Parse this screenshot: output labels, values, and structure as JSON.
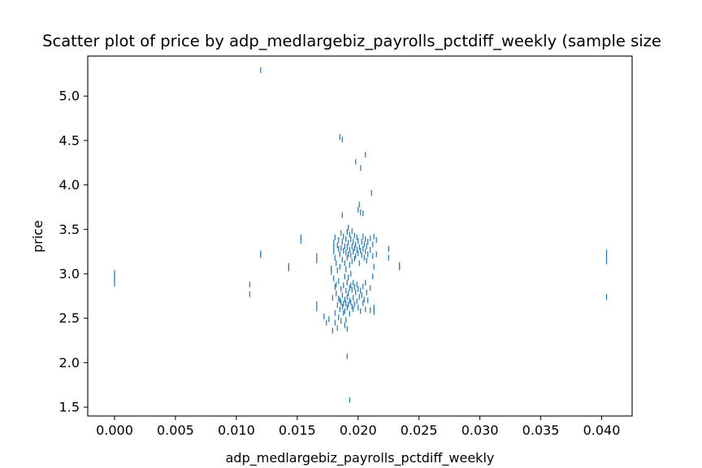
{
  "chart_data": {
    "type": "scatter",
    "title": "Scatter plot of price by adp_medlargebiz_payrolls_pctdiff_weekly (sample size",
    "xlabel": "adp_medlargebiz_payrolls_pctdiff_weekly",
    "ylabel": "price",
    "xlim": [
      -0.0022,
      0.0425
    ],
    "ylim": [
      1.4,
      5.45
    ],
    "xticks": [
      0.0,
      0.005,
      0.01,
      0.015,
      0.02,
      0.025,
      0.03,
      0.035,
      0.04
    ],
    "xtick_labels": [
      "0.000",
      "0.005",
      "0.010",
      "0.015",
      "0.020",
      "0.025",
      "0.030",
      "0.035",
      "0.040"
    ],
    "yticks": [
      1.5,
      2.0,
      2.5,
      3.0,
      3.5,
      4.0,
      4.5,
      5.0
    ],
    "ytick_labels": [
      "1.5",
      "2.0",
      "2.5",
      "3.0",
      "3.5",
      "4.0",
      "4.5",
      "5.0"
    ],
    "marker": "|",
    "color": "#1f77b4",
    "grid": false,
    "points": [
      [
        0.0,
        3.01
      ],
      [
        0.0,
        2.98
      ],
      [
        0.0,
        2.93
      ],
      [
        0.0,
        2.89
      ],
      [
        0.0111,
        2.88
      ],
      [
        0.0111,
        2.77
      ],
      [
        0.012,
        5.29
      ],
      [
        0.012,
        3.23
      ],
      [
        0.012,
        3.21
      ],
      [
        0.0143,
        3.09
      ],
      [
        0.0143,
        3.06
      ],
      [
        0.0153,
        3.41
      ],
      [
        0.0153,
        3.37
      ],
      [
        0.0166,
        3.2
      ],
      [
        0.0166,
        3.15
      ],
      [
        0.0166,
        2.66
      ],
      [
        0.0166,
        2.61
      ],
      [
        0.0172,
        2.52
      ],
      [
        0.0174,
        2.45
      ],
      [
        0.0176,
        2.49
      ],
      [
        0.0178,
        3.06
      ],
      [
        0.0178,
        3.02
      ],
      [
        0.0179,
        2.36
      ],
      [
        0.0179,
        2.73
      ],
      [
        0.018,
        3.3
      ],
      [
        0.018,
        3.35
      ],
      [
        0.018,
        3.25
      ],
      [
        0.018,
        2.95
      ],
      [
        0.0181,
        3.41
      ],
      [
        0.0181,
        3.18
      ],
      [
        0.0181,
        2.85
      ],
      [
        0.0181,
        2.56
      ],
      [
        0.0181,
        2.45
      ],
      [
        0.0182,
        3.12
      ],
      [
        0.0182,
        2.88
      ],
      [
        0.0182,
        2.78
      ],
      [
        0.0183,
        3.32
      ],
      [
        0.0183,
        3.04
      ],
      [
        0.0183,
        2.65
      ],
      [
        0.0183,
        2.39
      ],
      [
        0.0184,
        3.38
      ],
      [
        0.0184,
        3.28
      ],
      [
        0.0184,
        2.92
      ],
      [
        0.0184,
        2.72
      ],
      [
        0.0184,
        2.51
      ],
      [
        0.0185,
        4.54
      ],
      [
        0.0185,
        3.22
      ],
      [
        0.0185,
        3.08
      ],
      [
        0.0185,
        2.7
      ],
      [
        0.0185,
        2.6
      ],
      [
        0.0186,
        3.46
      ],
      [
        0.0186,
        3.29
      ],
      [
        0.0186,
        2.83
      ],
      [
        0.0186,
        2.68
      ],
      [
        0.0186,
        2.47
      ],
      [
        0.0187,
        4.51
      ],
      [
        0.0187,
        3.66
      ],
      [
        0.0187,
        3.36
      ],
      [
        0.0187,
        3.16
      ],
      [
        0.0187,
        2.76
      ],
      [
        0.0187,
        2.63
      ],
      [
        0.0188,
        3.42
      ],
      [
        0.0188,
        3.26
      ],
      [
        0.0188,
        2.87
      ],
      [
        0.0188,
        2.66
      ],
      [
        0.0188,
        2.56
      ],
      [
        0.0189,
        3.31
      ],
      [
        0.0189,
        3.12
      ],
      [
        0.0189,
        2.97
      ],
      [
        0.0189,
        2.71
      ],
      [
        0.0189,
        2.58
      ],
      [
        0.0189,
        2.42
      ],
      [
        0.019,
        3.39
      ],
      [
        0.019,
        3.24
      ],
      [
        0.019,
        3.05
      ],
      [
        0.019,
        2.81
      ],
      [
        0.019,
        2.67
      ],
      [
        0.019,
        2.48
      ],
      [
        0.0191,
        3.47
      ],
      [
        0.0191,
        3.3
      ],
      [
        0.0191,
        3.18
      ],
      [
        0.0191,
        2.9
      ],
      [
        0.0191,
        2.74
      ],
      [
        0.0191,
        2.62
      ],
      [
        0.0191,
        2.07
      ],
      [
        0.0191,
        2.38
      ],
      [
        0.0192,
        3.52
      ],
      [
        0.0192,
        3.35
      ],
      [
        0.0192,
        3.22
      ],
      [
        0.0192,
        2.96
      ],
      [
        0.0192,
        2.78
      ],
      [
        0.0192,
        2.65
      ],
      [
        0.0193,
        3.44
      ],
      [
        0.0193,
        3.27
      ],
      [
        0.0193,
        3.1
      ],
      [
        0.0193,
        2.84
      ],
      [
        0.0193,
        2.7
      ],
      [
        0.0193,
        2.55
      ],
      [
        0.0193,
        1.58
      ],
      [
        0.0194,
        3.39
      ],
      [
        0.0194,
        3.21
      ],
      [
        0.0194,
        3.0
      ],
      [
        0.0194,
        2.87
      ],
      [
        0.0194,
        2.68
      ],
      [
        0.0195,
        3.48
      ],
      [
        0.0195,
        3.31
      ],
      [
        0.0195,
        3.14
      ],
      [
        0.0195,
        2.82
      ],
      [
        0.0195,
        2.63
      ],
      [
        0.0196,
        3.36
      ],
      [
        0.0196,
        3.25
      ],
      [
        0.0196,
        2.9
      ],
      [
        0.0196,
        2.73
      ],
      [
        0.0196,
        2.6
      ],
      [
        0.0197,
        3.43
      ],
      [
        0.0197,
        3.29
      ],
      [
        0.0197,
        3.17
      ],
      [
        0.0197,
        2.85
      ],
      [
        0.0197,
        2.66
      ],
      [
        0.0198,
        4.26
      ],
      [
        0.0198,
        3.33
      ],
      [
        0.0198,
        3.2
      ],
      [
        0.0198,
        2.79
      ],
      [
        0.0199,
        3.41
      ],
      [
        0.0199,
        3.27
      ],
      [
        0.0199,
        2.88
      ],
      [
        0.0199,
        2.69
      ],
      [
        0.02,
        3.72
      ],
      [
        0.02,
        3.37
      ],
      [
        0.02,
        3.23
      ],
      [
        0.02,
        2.83
      ],
      [
        0.02,
        2.62
      ],
      [
        0.0201,
        3.78
      ],
      [
        0.0201,
        3.3
      ],
      [
        0.0201,
        3.12
      ],
      [
        0.0201,
        2.74
      ],
      [
        0.0202,
        4.19
      ],
      [
        0.0202,
        3.69
      ],
      [
        0.0202,
        3.26
      ],
      [
        0.0202,
        2.81
      ],
      [
        0.0202,
        2.58
      ],
      [
        0.0203,
        3.36
      ],
      [
        0.0203,
        3.21
      ],
      [
        0.0203,
        2.76
      ],
      [
        0.0204,
        3.68
      ],
      [
        0.0204,
        3.42
      ],
      [
        0.0204,
        3.28
      ],
      [
        0.0204,
        2.86
      ],
      [
        0.0204,
        2.67
      ],
      [
        0.0205,
        3.33
      ],
      [
        0.0205,
        3.18
      ],
      [
        0.0205,
        2.71
      ],
      [
        0.0206,
        4.34
      ],
      [
        0.0206,
        3.39
      ],
      [
        0.0206,
        3.25
      ],
      [
        0.0206,
        2.9
      ],
      [
        0.0206,
        2.6
      ],
      [
        0.0207,
        3.31
      ],
      [
        0.0207,
        3.15
      ],
      [
        0.0207,
        2.79
      ],
      [
        0.0208,
        3.36
      ],
      [
        0.0208,
        3.22
      ],
      [
        0.0208,
        2.7
      ],
      [
        0.021,
        3.4
      ],
      [
        0.021,
        3.27
      ],
      [
        0.021,
        2.84
      ],
      [
        0.021,
        2.59
      ],
      [
        0.0211,
        3.91
      ],
      [
        0.0212,
        3.33
      ],
      [
        0.0212,
        3.2
      ],
      [
        0.0212,
        2.97
      ],
      [
        0.0213,
        3.42
      ],
      [
        0.0213,
        3.08
      ],
      [
        0.0213,
        2.62
      ],
      [
        0.0213,
        2.57
      ],
      [
        0.0215,
        3.38
      ],
      [
        0.0215,
        3.22
      ],
      [
        0.0225,
        3.28
      ],
      [
        0.0225,
        3.18
      ],
      [
        0.0234,
        3.1
      ],
      [
        0.0234,
        3.07
      ],
      [
        0.0404,
        3.24
      ],
      [
        0.0404,
        3.19
      ],
      [
        0.0404,
        3.14
      ],
      [
        0.0404,
        2.74
      ]
    ]
  }
}
